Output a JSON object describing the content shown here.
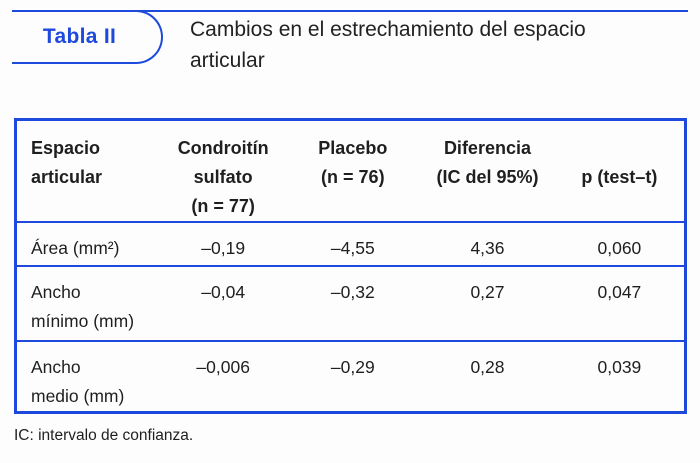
{
  "colors": {
    "accent_blue": "#1d49dc",
    "text": "#1f1f1f"
  },
  "header": {
    "badge": "Tabla II",
    "title": "Cambios en el estrechamiento del espacio articular"
  },
  "table": {
    "columns": [
      {
        "label": "Espacio\narticular"
      },
      {
        "label": "Condroitín\nsulfato\n(n = 77)"
      },
      {
        "label": "Placebo\n(n = 76)"
      },
      {
        "label": "Diferencia\n(IC del 95%)"
      },
      {
        "label": "p (test–t)"
      }
    ],
    "rows": [
      {
        "label": "Área (mm²)",
        "condroitin": "–0,19",
        "placebo": "–4,55",
        "diferencia": "4,36",
        "p": "0,060"
      },
      {
        "label": "Ancho\nmínimo (mm)",
        "condroitin": "–0,04",
        "placebo": "–0,32",
        "diferencia": "0,27",
        "p": "0,047"
      },
      {
        "label": "Ancho\nmedio (mm)",
        "condroitin": "–0,006",
        "placebo": "–0,29",
        "diferencia": "0,28",
        "p": "0,039"
      }
    ]
  },
  "footnote": "IC: intervalo de confianza."
}
